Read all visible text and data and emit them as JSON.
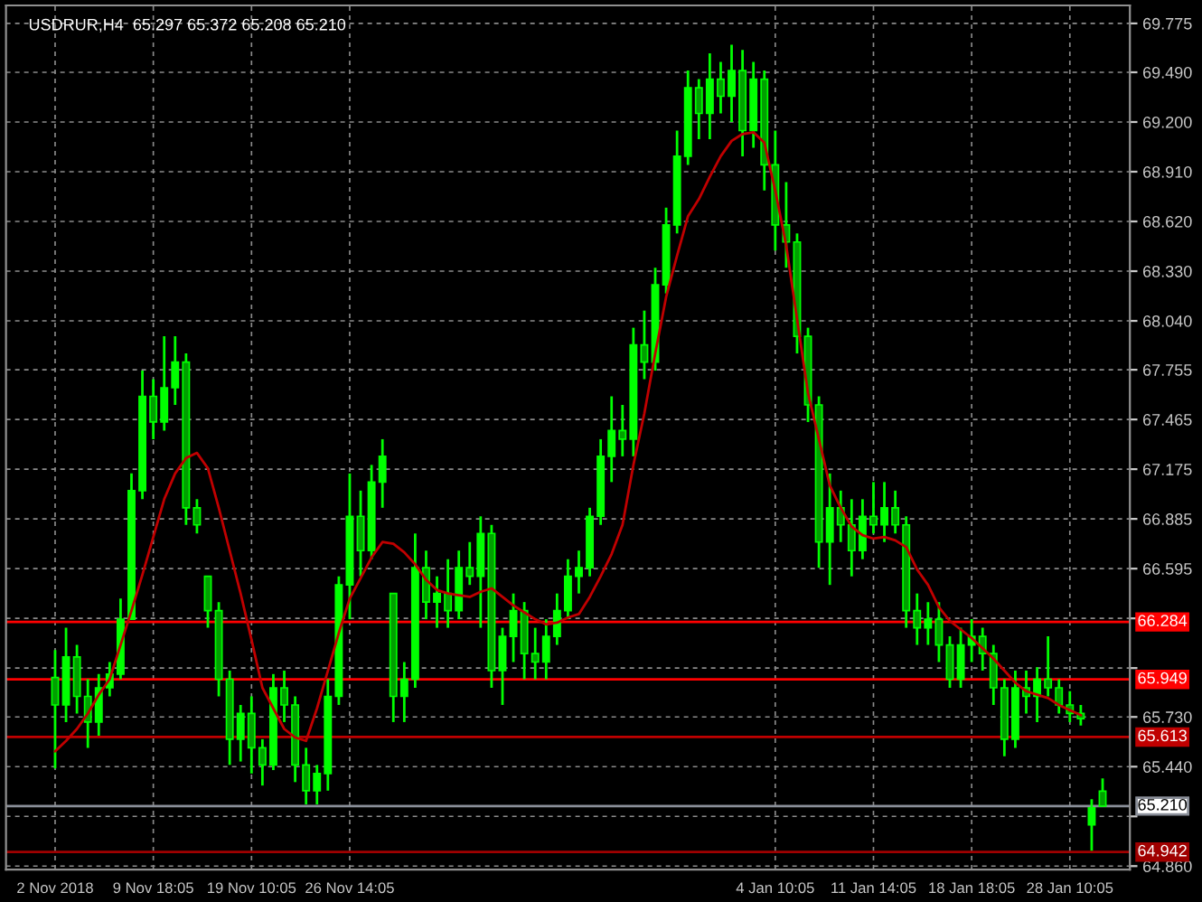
{
  "chart_data": {
    "type": "candlestick",
    "title": "USDRUR,H4  65.297 65.372 65.208 65.210",
    "categories": [
      "2 Nov 2018",
      null,
      null,
      null,
      null,
      null,
      null,
      null,
      null,
      "9 Nov 18:05",
      null,
      null,
      null,
      null,
      null,
      null,
      null,
      null,
      "19 Nov 10:05",
      null,
      null,
      null,
      null,
      null,
      null,
      null,
      null,
      "26 Nov 14:05",
      null,
      null,
      null,
      null,
      null,
      null,
      null,
      null,
      null,
      null,
      null,
      null,
      null,
      null,
      null,
      null,
      null,
      null,
      null,
      null,
      null,
      null,
      null,
      null,
      null,
      null,
      null,
      null,
      null,
      null,
      null,
      null,
      null,
      null,
      null,
      null,
      null,
      null,
      "4 Jan 10:05",
      null,
      null,
      null,
      null,
      null,
      null,
      null,
      null,
      "11 Jan 14:05",
      null,
      null,
      null,
      null,
      null,
      null,
      null,
      null,
      "18 Jan 18:05",
      null,
      null,
      null,
      null,
      null,
      null,
      null,
      null,
      "28 Jan 10:05",
      null,
      null,
      null
    ],
    "series": [
      {
        "type": "candlestick",
        "color": "#00ff00",
        "ohlc": [
          [
            65.96,
            66.12,
            65.43,
            65.8
          ],
          [
            65.8,
            66.25,
            65.7,
            66.08
          ],
          [
            66.08,
            66.15,
            65.75,
            65.85
          ],
          [
            65.85,
            65.95,
            65.55,
            65.7
          ],
          [
            65.7,
            65.98,
            65.62,
            65.9
          ],
          [
            65.9,
            66.05,
            65.85,
            65.98
          ],
          [
            65.98,
            66.42,
            65.95,
            66.3
          ],
          [
            66.3,
            67.15,
            66.3,
            67.05
          ],
          [
            67.05,
            67.75,
            67.0,
            67.6
          ],
          [
            67.6,
            67.7,
            67.35,
            67.45
          ],
          [
            67.45,
            67.95,
            67.4,
            67.65
          ],
          [
            67.65,
            67.95,
            67.55,
            67.8
          ],
          [
            67.8,
            67.85,
            66.85,
            66.95
          ],
          [
            66.95,
            67.0,
            66.8,
            66.85
          ],
          [
            66.55,
            66.55,
            66.25,
            66.35
          ],
          [
            66.35,
            66.4,
            65.85,
            65.95
          ],
          [
            65.95,
            66.0,
            65.45,
            65.6
          ],
          [
            65.6,
            65.8,
            65.47,
            65.75
          ],
          [
            65.75,
            65.85,
            65.4,
            65.55
          ],
          [
            65.55,
            65.6,
            65.33,
            65.45
          ],
          [
            65.45,
            65.98,
            65.42,
            65.9
          ],
          [
            65.9,
            66.0,
            65.7,
            65.8
          ],
          [
            65.8,
            65.85,
            65.35,
            65.45
          ],
          [
            65.45,
            65.55,
            65.22,
            65.3
          ],
          [
            65.3,
            65.45,
            65.22,
            65.4
          ],
          [
            65.4,
            65.95,
            65.3,
            65.85
          ],
          [
            65.85,
            66.55,
            65.8,
            66.5
          ],
          [
            66.5,
            67.15,
            66.3,
            66.9
          ],
          [
            66.9,
            67.05,
            66.55,
            66.7
          ],
          [
            66.7,
            67.2,
            66.65,
            67.1
          ],
          [
            67.1,
            67.35,
            66.95,
            67.25
          ],
          [
            66.45,
            66.45,
            65.7,
            65.85
          ],
          [
            65.85,
            66.05,
            65.7,
            65.95
          ],
          [
            65.95,
            66.8,
            65.9,
            66.6
          ],
          [
            66.6,
            66.7,
            66.3,
            66.4
          ],
          [
            66.4,
            66.55,
            66.25,
            66.45
          ],
          [
            66.45,
            66.65,
            66.25,
            66.35
          ],
          [
            66.35,
            66.7,
            66.3,
            66.6
          ],
          [
            66.6,
            66.75,
            66.5,
            66.55
          ],
          [
            66.55,
            66.9,
            66.25,
            66.8
          ],
          [
            66.8,
            66.85,
            65.9,
            66.0
          ],
          [
            66.0,
            66.25,
            65.8,
            66.2
          ],
          [
            66.2,
            66.45,
            66.05,
            66.35
          ],
          [
            66.35,
            66.4,
            65.95,
            66.1
          ],
          [
            66.1,
            66.25,
            65.95,
            66.05
          ],
          [
            66.05,
            66.3,
            65.95,
            66.2
          ],
          [
            66.2,
            66.45,
            66.15,
            66.35
          ],
          [
            66.35,
            66.65,
            66.3,
            66.55
          ],
          [
            66.55,
            66.7,
            66.45,
            66.6
          ],
          [
            66.6,
            66.95,
            66.55,
            66.9
          ],
          [
            66.9,
            67.35,
            66.85,
            67.25
          ],
          [
            67.25,
            67.6,
            67.1,
            67.4
          ],
          [
            67.4,
            67.55,
            67.25,
            67.35
          ],
          [
            67.35,
            68.0,
            67.25,
            67.9
          ],
          [
            67.9,
            68.1,
            67.7,
            67.8
          ],
          [
            67.8,
            68.35,
            67.75,
            68.25
          ],
          [
            68.25,
            68.7,
            68.2,
            68.6
          ],
          [
            68.6,
            69.15,
            68.55,
            69.0
          ],
          [
            69.0,
            69.5,
            68.95,
            69.4
          ],
          [
            69.4,
            69.45,
            69.1,
            69.25
          ],
          [
            69.25,
            69.6,
            69.1,
            69.45
          ],
          [
            69.45,
            69.55,
            69.25,
            69.35
          ],
          [
            69.35,
            69.65,
            69.2,
            69.5
          ],
          [
            69.5,
            69.62,
            69.0,
            69.15
          ],
          [
            69.15,
            69.55,
            69.05,
            69.45
          ],
          [
            69.45,
            69.5,
            68.8,
            68.95
          ],
          [
            68.95,
            69.15,
            68.45,
            68.6
          ],
          [
            68.6,
            68.85,
            68.35,
            68.5
          ],
          [
            68.5,
            68.55,
            67.85,
            67.95
          ],
          [
            67.95,
            68.0,
            67.45,
            67.55
          ],
          [
            67.55,
            67.6,
            66.6,
            66.75
          ],
          [
            66.75,
            67.15,
            66.5,
            66.95
          ],
          [
            66.95,
            67.05,
            66.75,
            66.85
          ],
          [
            66.85,
            67.0,
            66.55,
            66.7
          ],
          [
            66.7,
            67.0,
            66.65,
            66.9
          ],
          [
            66.9,
            67.1,
            66.8,
            66.85
          ],
          [
            66.85,
            67.1,
            66.75,
            66.95
          ],
          [
            66.95,
            67.05,
            66.8,
            66.85
          ],
          [
            66.85,
            66.9,
            66.25,
            66.35
          ],
          [
            66.35,
            66.45,
            66.15,
            66.25
          ],
          [
            66.25,
            66.4,
            66.15,
            66.3
          ],
          [
            66.3,
            66.4,
            66.05,
            66.15
          ],
          [
            66.15,
            66.2,
            65.9,
            65.95
          ],
          [
            65.95,
            66.25,
            65.9,
            66.15
          ],
          [
            66.15,
            66.3,
            66.05,
            66.2
          ],
          [
            66.2,
            66.25,
            66.0,
            66.1
          ],
          [
            66.1,
            66.15,
            65.8,
            65.9
          ],
          [
            65.9,
            65.95,
            65.5,
            65.6
          ],
          [
            65.6,
            66.0,
            65.55,
            65.9
          ],
          [
            65.9,
            66.0,
            65.75,
            65.85
          ],
          [
            65.85,
            66.02,
            65.7,
            65.95
          ],
          [
            65.95,
            66.2,
            65.85,
            65.9
          ],
          [
            65.9,
            65.95,
            65.75,
            65.8
          ],
          [
            65.8,
            65.88,
            65.7,
            65.75
          ],
          [
            65.75,
            65.8,
            65.68,
            65.72
          ],
          [
            65.1,
            65.25,
            64.95,
            65.2
          ],
          [
            65.297,
            65.372,
            65.208,
            65.21
          ]
        ]
      },
      {
        "type": "line",
        "color": "#c00000",
        "values": [
          65.53,
          65.59,
          65.66,
          65.75,
          65.86,
          65.95,
          66.15,
          66.35,
          66.56,
          66.78,
          67.0,
          67.15,
          67.24,
          67.27,
          67.18,
          66.95,
          66.7,
          66.45,
          66.18,
          65.9,
          65.78,
          65.66,
          65.61,
          65.59,
          65.78,
          66.0,
          66.22,
          66.42,
          66.54,
          66.66,
          66.75,
          66.74,
          66.69,
          66.62,
          66.53,
          66.47,
          66.45,
          66.44,
          66.43,
          66.46,
          66.48,
          66.43,
          66.38,
          66.34,
          66.3,
          66.27,
          66.28,
          66.31,
          66.33,
          66.43,
          66.55,
          66.68,
          66.85,
          67.2,
          67.5,
          67.85,
          68.18,
          68.42,
          68.65,
          68.75,
          68.88,
          69.0,
          69.09,
          69.13,
          69.14,
          69.08,
          68.8,
          68.48,
          68.05,
          67.62,
          67.35,
          67.08,
          66.95,
          66.84,
          66.79,
          66.77,
          66.78,
          66.76,
          66.72,
          66.59,
          66.5,
          66.37,
          66.29,
          66.24,
          66.19,
          66.13,
          66.07,
          66.0,
          65.93,
          65.88,
          65.86,
          65.84,
          65.8,
          65.77,
          65.74,
          null,
          null
        ]
      }
    ],
    "ylim": [
      64.84,
      69.88
    ],
    "yticks": [
      69.775,
      {
        "value": 69.49,
        "label": "69.490"
      },
      {
        "value": 69.2,
        "label": "69.200"
      },
      {
        "value": 68.91,
        "label": "68.910"
      },
      {
        "value": 68.62,
        "label": "68.620"
      },
      {
        "value": 68.33,
        "label": "68.330"
      },
      {
        "value": 68.04,
        "label": "68.040"
      },
      67.755,
      67.465,
      67.175,
      66.885,
      66.595,
      {
        "value": 66.305,
        "label": null
      },
      {
        "value": 66.015,
        "label": null
      },
      {
        "value": 65.73,
        "label": "65.730"
      },
      {
        "value": 65.44,
        "label": "65.440"
      },
      {
        "value": 65.15,
        "label": null
      },
      {
        "value": 64.86,
        "label": "64.860"
      }
    ],
    "ref_lines": [
      {
        "axis": "y",
        "value": 66.284,
        "label": "66.284",
        "color": "#ff0000"
      },
      {
        "axis": "y",
        "value": 65.949,
        "label": "65.949",
        "color": "#ff0000"
      },
      {
        "axis": "y",
        "value": 65.613,
        "label": "65.613",
        "color": "#c00000"
      },
      {
        "axis": "y",
        "value": 65.21,
        "label": "65.210",
        "color": "#8a8f99"
      },
      {
        "axis": "y",
        "value": 64.942,
        "label": "64.942",
        "color": "#a00000"
      }
    ],
    "grid": true,
    "legend": false
  }
}
